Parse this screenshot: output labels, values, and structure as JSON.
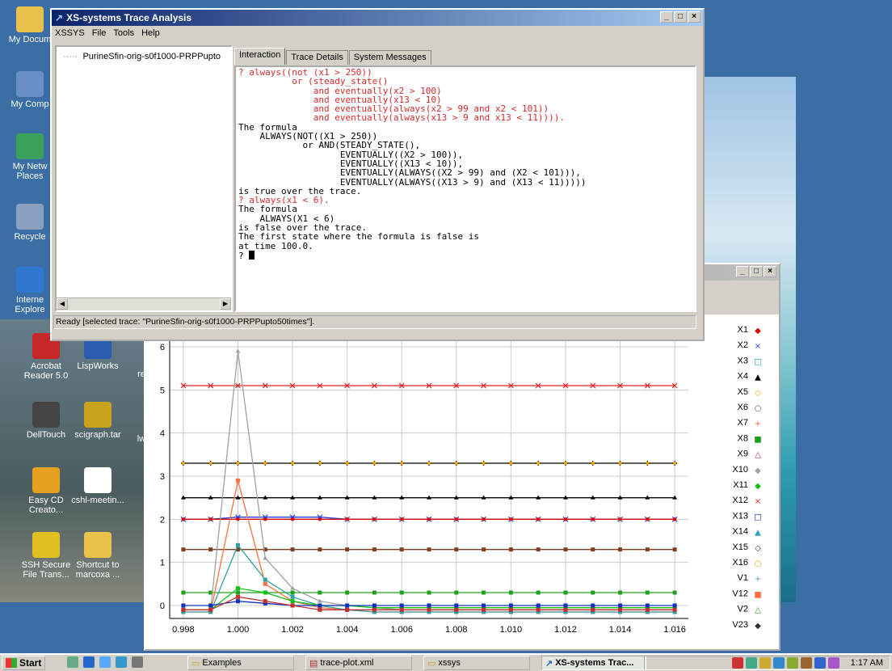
{
  "desktop": {
    "icons": [
      {
        "label": "My Docum",
        "color": "#e8c24a"
      },
      {
        "label": "My Comp",
        "color": "#6a8fc4"
      },
      {
        "label": "My Netw Places",
        "color": "#3aa05a"
      },
      {
        "label": "Recycle",
        "color": "#8aa0c0"
      },
      {
        "label": "Interne Explore",
        "color": "#2f77d0"
      },
      {
        "label": "Acrobat Reader 5.0",
        "color": "#c62828"
      },
      {
        "label": "LispWorks",
        "color": "#2a5db0"
      },
      {
        "label": "DellTouch",
        "color": "#444444"
      },
      {
        "label": "scigraph.tar",
        "color": "#c9a21c"
      },
      {
        "label": "Easy CD Creato...",
        "color": "#e8a020"
      },
      {
        "label": "cshl-meetin...",
        "color": "#ffffff"
      },
      {
        "label": "SSH Secure File Trans...",
        "color": "#e0c020"
      },
      {
        "label": "Shortcut to marcoxa ...",
        "color": "#e8c24a"
      }
    ],
    "partial_labels": [
      "re",
      "lw"
    ]
  },
  "main_window": {
    "title": "XS-systems Trace Analysis",
    "menu": [
      "XSSYS",
      "File",
      "Tools",
      "Help"
    ],
    "tree_node": "PurineSfin-orig-s0f1000-PRPPupto",
    "tabs": [
      "Interaction",
      "Trace Details",
      "System Messages"
    ],
    "console_lines": [
      {
        "text": "? always((not (x1 > 250))",
        "color": "red"
      },
      {
        "text": "          or (steady_state()",
        "color": "red"
      },
      {
        "text": "              and eventually(x2 > 100)",
        "color": "red"
      },
      {
        "text": "              and eventually(x13 < 10)",
        "color": "red"
      },
      {
        "text": "              and eventually(always(x2 > 99 and x2 < 101))",
        "color": "red"
      },
      {
        "text": "              and eventually(always(x13 > 9 and x13 < 11)))).",
        "color": "red"
      },
      {
        "text": "The formula",
        "color": "blk"
      },
      {
        "text": "    ALWAYS(NOT((X1 > 250))",
        "color": "blk"
      },
      {
        "text": "            or AND(STEADY_STATE(),",
        "color": "blk"
      },
      {
        "text": "                   EVENTUALLY((X2 > 100)),",
        "color": "blk"
      },
      {
        "text": "                   EVENTUALLY((X13 < 10)),",
        "color": "blk"
      },
      {
        "text": "                   EVENTUALLY(ALWAYS((X2 > 99) and (X2 < 101))),",
        "color": "blk"
      },
      {
        "text": "                   EVENTUALLY(ALWAYS((X13 > 9) and (X13 < 11)))))",
        "color": "blk"
      },
      {
        "text": "is true over the trace.",
        "color": "blk"
      },
      {
        "text": "? always(x1 < 6).",
        "color": "red"
      },
      {
        "text": "The formula",
        "color": "blk"
      },
      {
        "text": "    ALWAYS(X1 < 6)",
        "color": "blk"
      },
      {
        "text": "is false over the trace.",
        "color": "blk"
      },
      {
        "text": "The first state where the formula is false is",
        "color": "blk"
      },
      {
        "text": "at time 100.0.",
        "color": "blk"
      }
    ],
    "prompt": "? ",
    "status": "Ready [selected trace: \"PurineSfin-orig-s0f1000-PRPPupto50times\"]."
  },
  "plot_window": {
    "legend": [
      {
        "name": "X1",
        "marker": "◆",
        "color": "#e00000"
      },
      {
        "name": "X2",
        "marker": "×",
        "color": "#2040e0"
      },
      {
        "name": "X3",
        "marker": "□",
        "color": "#18a0a0"
      },
      {
        "name": "X4",
        "marker": "▲",
        "color": "#000000"
      },
      {
        "name": "X5",
        "marker": "◇",
        "color": "#f0a000"
      },
      {
        "name": "X6",
        "marker": "○",
        "color": "#406080"
      },
      {
        "name": "X7",
        "marker": "+",
        "color": "#ff6030"
      },
      {
        "name": "X8",
        "marker": "■",
        "color": "#20a020"
      },
      {
        "name": "X9",
        "marker": "△",
        "color": "#c03030"
      },
      {
        "name": "X10",
        "marker": "◆",
        "color": "#a0a0a0"
      },
      {
        "name": "X11",
        "marker": "◆",
        "color": "#10c010"
      },
      {
        "name": "X12",
        "marker": "×",
        "color": "#e02020"
      },
      {
        "name": "X13",
        "marker": "□",
        "color": "#1030c0"
      },
      {
        "name": "X14",
        "marker": "▲",
        "color": "#30a0c0"
      },
      {
        "name": "X15",
        "marker": "◇",
        "color": "#303030"
      },
      {
        "name": "X16",
        "marker": "○",
        "color": "#f0a000"
      },
      {
        "name": "V1",
        "marker": "+",
        "color": "#60a0c0"
      },
      {
        "name": "V12",
        "marker": "■",
        "color": "#ff7040"
      },
      {
        "name": "V2",
        "marker": "△",
        "color": "#20a020"
      },
      {
        "name": "V23",
        "marker": "◆",
        "color": "#303030"
      }
    ]
  },
  "chart_data": {
    "type": "line",
    "xlim": [
      0.9975,
      1.0165
    ],
    "ylim": [
      -0.3,
      6.6
    ],
    "x_ticks": [
      "0.998",
      "1.000",
      "1.002",
      "1.004",
      "1.006",
      "1.008",
      "1.010",
      "1.012",
      "1.014",
      "1.016"
    ],
    "y_ticks": [
      "0",
      "1",
      "2",
      "3",
      "4",
      "5",
      "6"
    ],
    "x": [
      0.998,
      0.999,
      1.0,
      1.001,
      1.002,
      1.003,
      1.004,
      1.005,
      1.006,
      1.007,
      1.008,
      1.009,
      1.01,
      1.011,
      1.012,
      1.013,
      1.014,
      1.015,
      1.016
    ],
    "series": [
      {
        "name": "X12",
        "color": "#e02020",
        "marker": "x",
        "values": [
          5.1,
          5.1,
          5.1,
          5.1,
          5.1,
          5.1,
          5.1,
          5.1,
          5.1,
          5.1,
          5.1,
          5.1,
          5.1,
          5.1,
          5.1,
          5.1,
          5.1,
          5.1,
          5.1
        ]
      },
      {
        "name": "X5",
        "color": "#000000",
        "marker": "+",
        "values": [
          3.3,
          3.3,
          3.3,
          3.3,
          3.3,
          3.3,
          3.3,
          3.3,
          3.3,
          3.3,
          3.3,
          3.3,
          3.3,
          3.3,
          3.3,
          3.3,
          3.3,
          3.3,
          3.3
        ]
      },
      {
        "name": "X4",
        "color": "#000000",
        "marker": "tri",
        "values": [
          2.5,
          2.5,
          2.5,
          2.5,
          2.5,
          2.5,
          2.5,
          2.5,
          2.5,
          2.5,
          2.5,
          2.5,
          2.5,
          2.5,
          2.5,
          2.5,
          2.5,
          2.5,
          2.5
        ]
      },
      {
        "name": "X2",
        "color": "#2040e0",
        "marker": "x",
        "values": [
          2.0,
          2.0,
          2.05,
          2.05,
          2.05,
          2.05,
          2.0,
          2.0,
          2.0,
          2.0,
          2.0,
          2.0,
          2.0,
          2.0,
          2.0,
          2.0,
          2.0,
          2.0,
          2.0
        ]
      },
      {
        "name": "X1",
        "color": "#e00000",
        "marker": "dot",
        "values": [
          2.0,
          2.0,
          2.0,
          2.0,
          2.0,
          2.0,
          2.0,
          2.0,
          2.0,
          2.0,
          2.0,
          2.0,
          2.0,
          2.0,
          2.0,
          2.0,
          2.0,
          2.0,
          2.0
        ]
      },
      {
        "name": "X8",
        "color": "#804020",
        "marker": "sq",
        "values": [
          1.3,
          1.3,
          1.3,
          1.3,
          1.3,
          1.3,
          1.3,
          1.3,
          1.3,
          1.3,
          1.3,
          1.3,
          1.3,
          1.3,
          1.3,
          1.3,
          1.3,
          1.3,
          1.3
        ]
      },
      {
        "name": "V2",
        "color": "#20a020",
        "marker": "sq",
        "values": [
          0.3,
          0.3,
          0.3,
          0.3,
          0.3,
          0.3,
          0.3,
          0.3,
          0.3,
          0.3,
          0.3,
          0.3,
          0.3,
          0.3,
          0.3,
          0.3,
          0.3,
          0.3,
          0.3
        ]
      },
      {
        "name": "X10",
        "color": "#a0a0a0",
        "marker": "tri",
        "values": [
          -0.1,
          -0.1,
          5.9,
          1.1,
          0.4,
          0.1,
          0.0,
          -0.05,
          -0.1,
          -0.1,
          -0.1,
          -0.1,
          -0.1,
          -0.1,
          -0.1,
          -0.1,
          -0.1,
          -0.1,
          -0.1
        ]
      },
      {
        "name": "V12",
        "color": "#ff7040",
        "marker": "sq",
        "values": [
          -0.15,
          -0.15,
          2.9,
          0.5,
          0.1,
          -0.05,
          -0.1,
          -0.15,
          -0.15,
          -0.15,
          -0.15,
          -0.15,
          -0.15,
          -0.15,
          -0.15,
          -0.15,
          -0.15,
          -0.15,
          -0.15
        ]
      },
      {
        "name": "X14",
        "color": "#30a0a0",
        "marker": "sq",
        "values": [
          -0.15,
          -0.15,
          1.4,
          0.6,
          0.2,
          0.0,
          -0.1,
          -0.15,
          -0.15,
          -0.15,
          -0.15,
          -0.15,
          -0.15,
          -0.15,
          -0.15,
          -0.15,
          -0.15,
          -0.15,
          -0.15
        ]
      },
      {
        "name": "X11",
        "color": "#10c010",
        "marker": "sq",
        "values": [
          -0.1,
          -0.1,
          0.4,
          0.3,
          0.1,
          0.0,
          0.0,
          -0.05,
          -0.05,
          -0.05,
          -0.05,
          -0.05,
          -0.05,
          -0.05,
          -0.05,
          -0.05,
          -0.05,
          -0.05,
          -0.05
        ]
      },
      {
        "name": "X13",
        "color": "#1030c0",
        "marker": "sq",
        "values": [
          0.0,
          0.0,
          0.1,
          0.05,
          0.0,
          0.0,
          0.0,
          0.0,
          0.0,
          0.0,
          0.0,
          0.0,
          0.0,
          0.0,
          0.0,
          0.0,
          0.0,
          0.0,
          0.0
        ]
      },
      {
        "name": "X9",
        "color": "#c03030",
        "marker": "sq",
        "values": [
          -0.1,
          -0.1,
          0.2,
          0.1,
          0.0,
          -0.1,
          -0.1,
          -0.1,
          -0.1,
          -0.1,
          -0.1,
          -0.1,
          -0.1,
          -0.1,
          -0.1,
          -0.1,
          -0.1,
          -0.1,
          -0.1
        ]
      }
    ]
  },
  "taskbar": {
    "start": "Start",
    "tasks": [
      "Examples",
      "trace-plot.xml",
      "xssys",
      "XS-systems Trac..."
    ],
    "clock": "1:17 AM"
  }
}
